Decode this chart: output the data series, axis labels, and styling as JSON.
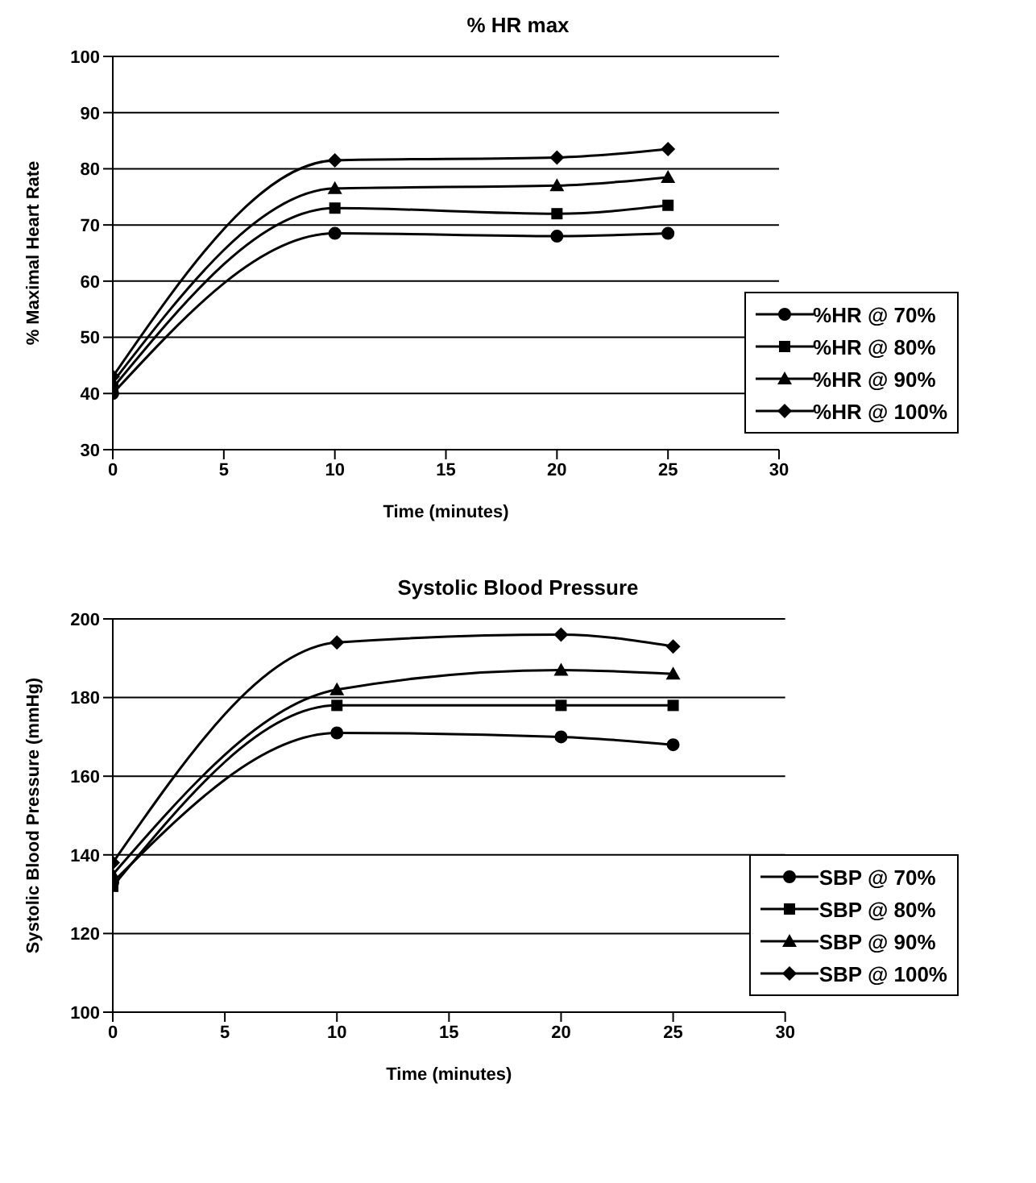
{
  "chart_data": [
    {
      "type": "line",
      "title": "% HR max",
      "xlabel": "Time (minutes)",
      "ylabel": "% Maximal Heart Rate",
      "x": [
        0,
        10,
        20,
        25
      ],
      "xlim": [
        0,
        30
      ],
      "xticks": [
        0,
        5,
        10,
        15,
        20,
        25,
        30
      ],
      "ylim": [
        30,
        100
      ],
      "yticks": [
        30,
        40,
        50,
        60,
        70,
        80,
        90,
        100
      ],
      "grid": "y",
      "legend": "bottom right",
      "series": [
        {
          "name": "%HR @ 70%",
          "color": "#000000",
          "marker": "circle",
          "values": [
            40,
            68.5,
            68,
            68.5
          ]
        },
        {
          "name": "%HR @ 80%",
          "color": "#000000",
          "marker": "square",
          "values": [
            41,
            73,
            72,
            73.5
          ]
        },
        {
          "name": "%HR @ 90%",
          "color": "#000000",
          "marker": "triangle",
          "values": [
            42,
            76.5,
            77,
            78.5
          ]
        },
        {
          "name": "%HR @ 100%",
          "color": "#000000",
          "marker": "diamond",
          "values": [
            43,
            81.5,
            82,
            83.5
          ]
        }
      ]
    },
    {
      "type": "line",
      "title": "Systolic Blood Pressure",
      "xlabel": "Time (minutes)",
      "ylabel": "Systolic Blood Pressure (mmHg)",
      "x": [
        0,
        10,
        20,
        25
      ],
      "xlim": [
        0,
        30
      ],
      "xticks": [
        0,
        5,
        10,
        15,
        20,
        25,
        30
      ],
      "ylim": [
        100,
        200
      ],
      "yticks": [
        100,
        120,
        140,
        160,
        180,
        200
      ],
      "grid": "y",
      "legend": "bottom right",
      "series": [
        {
          "name": "SBP @ 70%",
          "color": "#000000",
          "marker": "circle",
          "values": [
            133,
            171,
            170,
            168
          ]
        },
        {
          "name": "SBP @ 80%",
          "color": "#000000",
          "marker": "square",
          "values": [
            132,
            178,
            178,
            178
          ]
        },
        {
          "name": "SBP @ 90%",
          "color": "#000000",
          "marker": "triangle",
          "values": [
            135,
            182,
            187,
            186
          ]
        },
        {
          "name": "SBP @ 100%",
          "color": "#000000",
          "marker": "diamond",
          "values": [
            138,
            194,
            196,
            193
          ]
        }
      ]
    }
  ]
}
